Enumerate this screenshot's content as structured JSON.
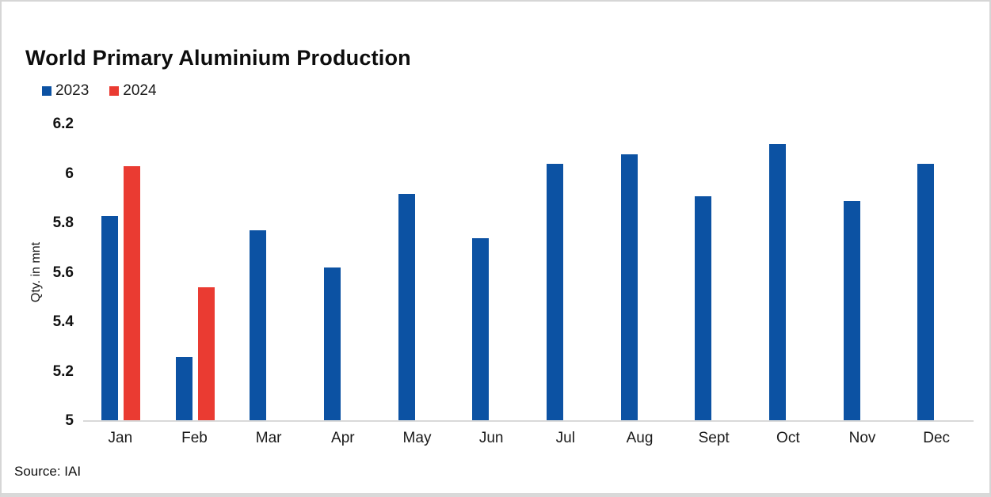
{
  "title": "World Primary Aluminium Production",
  "source": "Source: IAI",
  "legend": [
    {
      "label": "2023",
      "color": "#0c52a3"
    },
    {
      "label": "2024",
      "color": "#ea3b32"
    }
  ],
  "chart_data": {
    "type": "bar",
    "title": "World Primary Aluminium Production",
    "categories": [
      "Jan",
      "Feb",
      "Mar",
      "Apr",
      "May",
      "Jun",
      "Jul",
      "Aug",
      "Sept",
      "Oct",
      "Nov",
      "Dec"
    ],
    "series": [
      {
        "name": "2023",
        "color": "#0c52a3",
        "values": [
          5.83,
          5.26,
          5.77,
          5.62,
          5.92,
          5.74,
          6.04,
          6.08,
          5.91,
          6.12,
          5.89,
          6.04
        ]
      },
      {
        "name": "2024",
        "color": "#ea3b32",
        "values": [
          6.03,
          5.54,
          null,
          null,
          null,
          null,
          null,
          null,
          null,
          null,
          null,
          null
        ]
      }
    ],
    "xlabel": "",
    "ylabel": "Qty. in mnt",
    "ylim": [
      5,
      6.2
    ],
    "yticks": [
      5,
      5.2,
      5.4,
      5.6,
      5.8,
      6,
      6.2
    ],
    "grid": false,
    "legend_position": "top-left",
    "axis_line_color": "#d9d9d9"
  }
}
